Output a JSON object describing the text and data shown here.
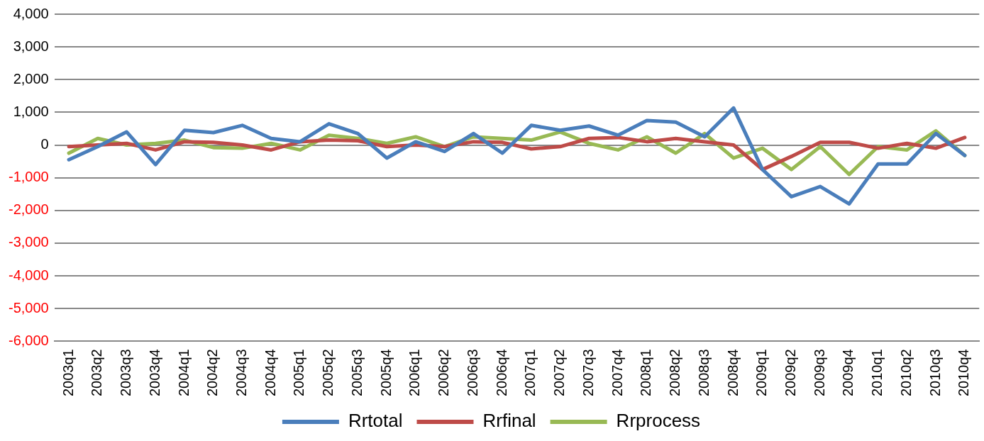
{
  "chart_data": {
    "type": "line",
    "categories": [
      "2003q1",
      "2003q2",
      "2003q3",
      "2003q4",
      "2004q1",
      "2004q2",
      "2004q3",
      "2004q4",
      "2005q1",
      "2005q2",
      "2005q3",
      "2005q4",
      "2006q1",
      "2006q2",
      "2006q3",
      "2006q4",
      "2007q1",
      "2007q2",
      "2007q3",
      "2007q4",
      "2008q1",
      "2008q2",
      "2008q3",
      "2008q4",
      "2009q1",
      "2009q2",
      "2009q3",
      "2009q4",
      "2010q1",
      "2010q2",
      "2010q3",
      "2010q4"
    ],
    "series": [
      {
        "name": "Rrtotal",
        "color": "#4a7ebb",
        "values": [
          -450,
          -50,
          400,
          -600,
          450,
          380,
          600,
          200,
          100,
          650,
          350,
          -400,
          100,
          -200,
          350,
          -250,
          600,
          450,
          580,
          300,
          750,
          700,
          250,
          1130,
          -750,
          -1580,
          -1270,
          -1800,
          -580,
          -580,
          350,
          -320
        ]
      },
      {
        "name": "Rrfinal",
        "color": "#be4b48",
        "values": [
          -50,
          0,
          50,
          -150,
          100,
          80,
          0,
          -150,
          100,
          150,
          130,
          -50,
          0,
          -50,
          100,
          80,
          -120,
          -50,
          200,
          230,
          100,
          200,
          100,
          0,
          -750,
          -350,
          80,
          80,
          -100,
          50,
          -100,
          230
        ]
      },
      {
        "name": "Rrprocess",
        "color": "#98b954",
        "values": [
          -250,
          200,
          0,
          50,
          150,
          -80,
          -100,
          50,
          -150,
          300,
          200,
          50,
          250,
          -50,
          250,
          200,
          150,
          400,
          50,
          -150,
          250,
          -250,
          350,
          -400,
          -100,
          -750,
          -50,
          -900,
          -50,
          -150,
          430,
          -320
        ]
      }
    ],
    "ylim": [
      -6000,
      4000
    ],
    "yticks": [
      {
        "value": -6000,
        "label": "-6,000"
      },
      {
        "value": -5000,
        "label": "-5,000"
      },
      {
        "value": -4000,
        "label": "-4,000"
      },
      {
        "value": -3000,
        "label": "-3,000"
      },
      {
        "value": -2000,
        "label": "-2,000"
      },
      {
        "value": -1000,
        "label": "-1,000"
      },
      0,
      {
        "value": 1000,
        "label": "1,000"
      },
      {
        "value": 2000,
        "label": "2,000"
      },
      {
        "value": 3000,
        "label": "3,000"
      },
      {
        "value": 4000,
        "label": "4,000"
      }
    ],
    "grid": "y",
    "legend": "bottom",
    "marker": "none",
    "line_style": "solid"
  }
}
